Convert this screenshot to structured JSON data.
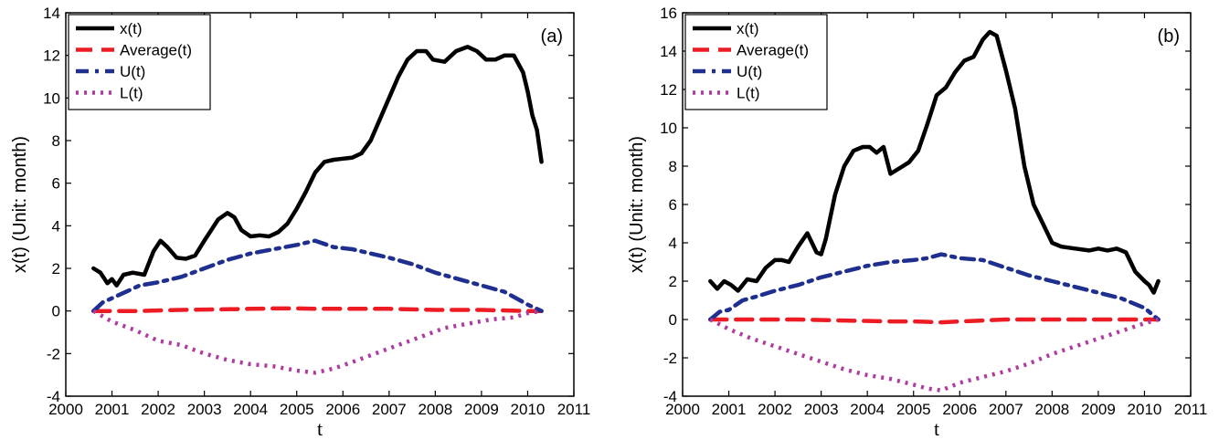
{
  "chart_data": [
    {
      "type": "line",
      "panel_label": "(a)",
      "xlabel": "t",
      "ylabel": "x(t) (Unit: month)",
      "xlim": [
        2000,
        2011
      ],
      "ylim": [
        -4,
        14
      ],
      "xticks": [
        "2000",
        "2001",
        "2002",
        "2003",
        "2004",
        "2005",
        "2006",
        "2007",
        "2008",
        "2009",
        "2010",
        "2011"
      ],
      "yticks": [
        "-4",
        "-2",
        "0",
        "2",
        "4",
        "6",
        "8",
        "10",
        "12",
        "14"
      ],
      "grid": false,
      "legend_position": "top-left",
      "series": [
        {
          "name": "x(t)",
          "color": "#000000",
          "style": "solid",
          "x": [
            2000.6,
            2000.75,
            2000.9,
            2001.0,
            2001.1,
            2001.25,
            2001.45,
            2001.7,
            2001.9,
            2002.05,
            2002.2,
            2002.4,
            2002.6,
            2002.8,
            2003.0,
            2003.3,
            2003.5,
            2003.65,
            2003.8,
            2004.0,
            2004.2,
            2004.4,
            2004.6,
            2004.8,
            2005.0,
            2005.2,
            2005.4,
            2005.6,
            2005.8,
            2006.0,
            2006.2,
            2006.4,
            2006.6,
            2006.8,
            2007.0,
            2007.2,
            2007.4,
            2007.6,
            2007.8,
            2007.95,
            2008.2,
            2008.45,
            2008.7,
            2008.9,
            2009.1,
            2009.3,
            2009.5,
            2009.7,
            2009.9,
            2010.0,
            2010.1,
            2010.2,
            2010.3
          ],
          "y": [
            2.0,
            1.8,
            1.3,
            1.5,
            1.2,
            1.7,
            1.8,
            1.7,
            2.8,
            3.3,
            3.0,
            2.5,
            2.45,
            2.6,
            3.3,
            4.3,
            4.6,
            4.4,
            3.8,
            3.5,
            3.55,
            3.5,
            3.7,
            4.1,
            4.8,
            5.6,
            6.5,
            7.0,
            7.1,
            7.15,
            7.2,
            7.4,
            8.0,
            9.0,
            10.0,
            11.0,
            11.8,
            12.2,
            12.2,
            11.8,
            11.7,
            12.2,
            12.4,
            12.2,
            11.8,
            11.8,
            12.0,
            12.0,
            11.2,
            10.3,
            9.2,
            8.5,
            7.0
          ]
        },
        {
          "name": "Average(t)",
          "color": "#ed1c24",
          "style": "dashed",
          "x": [
            2000.6,
            2001.5,
            2002.5,
            2003.5,
            2004.0,
            2004.5,
            2005.0,
            2005.5,
            2006.0,
            2007.0,
            2008.0,
            2009.0,
            2010.0,
            2010.3
          ],
          "y": [
            0.0,
            0.0,
            0.05,
            0.08,
            0.1,
            0.12,
            0.12,
            0.1,
            0.1,
            0.1,
            0.05,
            0.05,
            0.0,
            0.0
          ]
        },
        {
          "name": "U(t)",
          "color": "#1f2f8f",
          "style": "dashdot",
          "x": [
            2000.6,
            2000.8,
            2001.0,
            2001.3,
            2001.6,
            2002.0,
            2002.5,
            2003.0,
            2003.5,
            2004.0,
            2004.5,
            2005.0,
            2005.4,
            2005.8,
            2006.2,
            2006.6,
            2007.0,
            2007.5,
            2008.0,
            2008.5,
            2009.0,
            2009.5,
            2010.0,
            2010.3
          ],
          "y": [
            0.0,
            0.4,
            0.6,
            0.9,
            1.2,
            1.35,
            1.6,
            2.0,
            2.4,
            2.7,
            2.9,
            3.1,
            3.3,
            3.0,
            2.9,
            2.7,
            2.5,
            2.2,
            1.8,
            1.5,
            1.2,
            0.9,
            0.3,
            0.0
          ]
        },
        {
          "name": "L(t)",
          "color": "#b03a9e",
          "style": "dotted",
          "x": [
            2000.6,
            2001.0,
            2001.5,
            2002.0,
            2002.5,
            2003.0,
            2003.5,
            2004.0,
            2004.5,
            2005.0,
            2005.4,
            2005.8,
            2006.2,
            2006.7,
            2007.2,
            2007.7,
            2008.2,
            2008.7,
            2009.2,
            2009.7,
            2010.0,
            2010.3
          ],
          "y": [
            0.0,
            -0.5,
            -0.9,
            -1.4,
            -1.6,
            -2.0,
            -2.3,
            -2.5,
            -2.6,
            -2.8,
            -2.9,
            -2.7,
            -2.4,
            -2.0,
            -1.6,
            -1.2,
            -0.8,
            -0.6,
            -0.4,
            -0.3,
            -0.1,
            0.0
          ]
        }
      ]
    },
    {
      "type": "line",
      "panel_label": "(b)",
      "xlabel": "t",
      "ylabel": "x(t) (Unit: month)",
      "xlim": [
        2000,
        2011
      ],
      "ylim": [
        -4,
        16
      ],
      "xticks": [
        "2000",
        "2001",
        "2002",
        "2003",
        "2004",
        "2005",
        "2006",
        "2007",
        "2008",
        "2009",
        "2010",
        "2011"
      ],
      "yticks": [
        "-4",
        "-2",
        "0",
        "2",
        "4",
        "6",
        "8",
        "10",
        "12",
        "14",
        "16"
      ],
      "grid": false,
      "legend_position": "top-left",
      "series": [
        {
          "name": "x(t)",
          "color": "#000000",
          "style": "solid",
          "x": [
            2000.6,
            2000.75,
            2000.9,
            2001.05,
            2001.2,
            2001.4,
            2001.6,
            2001.8,
            2002.0,
            2002.15,
            2002.3,
            2002.5,
            2002.7,
            2002.9,
            2003.0,
            2003.1,
            2003.3,
            2003.5,
            2003.7,
            2003.9,
            2004.05,
            2004.2,
            2004.35,
            2004.5,
            2004.7,
            2004.9,
            2005.1,
            2005.3,
            2005.5,
            2005.7,
            2005.9,
            2006.1,
            2006.3,
            2006.5,
            2006.65,
            2006.8,
            2007.0,
            2007.2,
            2007.4,
            2007.6,
            2007.8,
            2008.0,
            2008.2,
            2008.5,
            2008.8,
            2009.0,
            2009.2,
            2009.4,
            2009.6,
            2009.8,
            2010.0,
            2010.1,
            2010.2,
            2010.3
          ],
          "y": [
            2.0,
            1.6,
            2.0,
            1.8,
            1.5,
            2.1,
            2.0,
            2.7,
            3.1,
            3.1,
            3.0,
            3.8,
            4.5,
            3.5,
            3.4,
            4.2,
            6.5,
            8.0,
            8.8,
            9.0,
            9.0,
            8.7,
            9.0,
            7.6,
            7.9,
            8.2,
            8.8,
            10.2,
            11.7,
            12.1,
            12.9,
            13.5,
            13.7,
            14.6,
            15.0,
            14.8,
            13.0,
            11.0,
            8.0,
            6.0,
            5.0,
            4.0,
            3.8,
            3.7,
            3.6,
            3.7,
            3.6,
            3.7,
            3.5,
            2.5,
            2.0,
            1.8,
            1.4,
            2.0
          ]
        },
        {
          "name": "Average(t)",
          "color": "#ed1c24",
          "style": "dashed",
          "x": [
            2000.6,
            2001.5,
            2002.5,
            2003.5,
            2004.5,
            2005.0,
            2005.6,
            2006.0,
            2006.5,
            2007.0,
            2008.0,
            2009.0,
            2010.0,
            2010.3
          ],
          "y": [
            0.0,
            0.0,
            0.0,
            -0.05,
            -0.1,
            -0.1,
            -0.15,
            -0.1,
            -0.05,
            0.0,
            0.0,
            0.0,
            0.0,
            0.0
          ]
        },
        {
          "name": "U(t)",
          "color": "#1f2f8f",
          "style": "dashdot",
          "x": [
            2000.6,
            2000.8,
            2001.0,
            2001.3,
            2001.6,
            2002.0,
            2002.5,
            2003.0,
            2003.5,
            2004.0,
            2004.5,
            2005.0,
            2005.3,
            2005.6,
            2006.0,
            2006.5,
            2007.0,
            2007.5,
            2008.0,
            2008.5,
            2009.0,
            2009.5,
            2010.0,
            2010.3
          ],
          "y": [
            0.0,
            0.4,
            0.5,
            1.0,
            1.2,
            1.5,
            1.8,
            2.2,
            2.5,
            2.8,
            3.0,
            3.1,
            3.2,
            3.4,
            3.2,
            3.1,
            2.7,
            2.3,
            2.0,
            1.7,
            1.4,
            1.1,
            0.6,
            0.0
          ]
        },
        {
          "name": "L(t)",
          "color": "#b03a9e",
          "style": "dotted",
          "x": [
            2000.6,
            2001.0,
            2001.5,
            2002.0,
            2002.5,
            2003.0,
            2003.5,
            2004.0,
            2004.5,
            2005.0,
            2005.3,
            2005.6,
            2006.0,
            2006.5,
            2007.0,
            2007.5,
            2008.0,
            2008.5,
            2009.0,
            2009.5,
            2010.0,
            2010.3
          ],
          "y": [
            0.0,
            -0.5,
            -1.0,
            -1.4,
            -1.8,
            -2.2,
            -2.6,
            -2.9,
            -3.1,
            -3.4,
            -3.6,
            -3.7,
            -3.3,
            -3.0,
            -2.7,
            -2.3,
            -1.8,
            -1.4,
            -1.0,
            -0.6,
            -0.2,
            0.0
          ]
        }
      ]
    }
  ]
}
